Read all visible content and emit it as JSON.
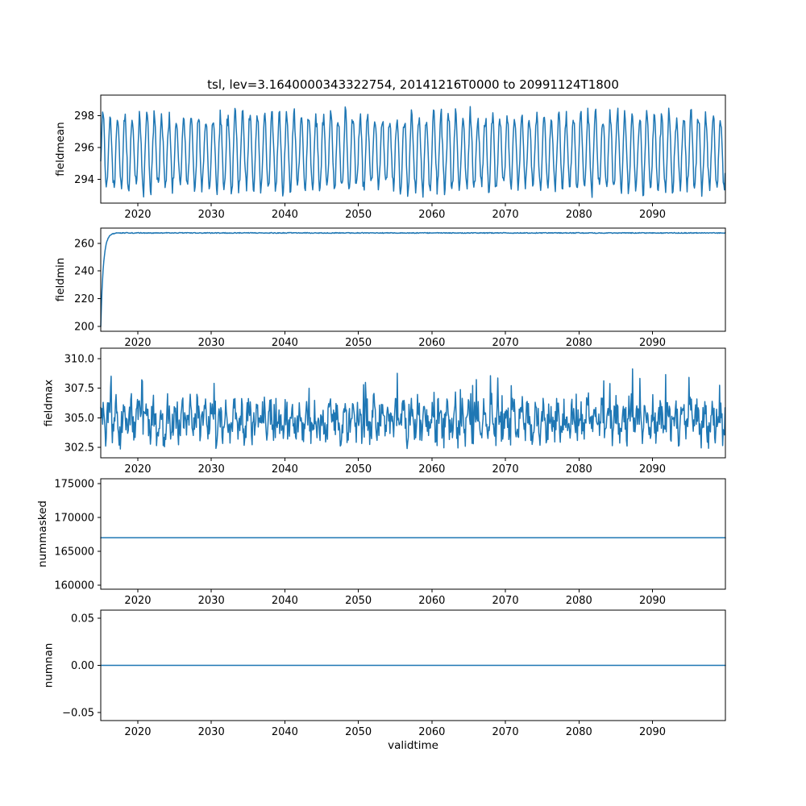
{
  "figure": {
    "title": "tsl, lev=3.1640000343322754, 20141216T0000 to 20991124T1800",
    "xlabel": "validtime",
    "background": "#ffffff",
    "line_color": "#1f77b4",
    "axis_color": "#000000",
    "text_color": "#000000"
  },
  "chart_data": [
    {
      "type": "line",
      "name": "fieldmean",
      "ylabel": "fieldmean",
      "xlim": [
        2014.96,
        2099.92
      ],
      "ylim": [
        292.5,
        299.3
      ],
      "yticks": [
        294,
        296,
        298
      ],
      "ytick_labels": [
        "294",
        "296",
        "298"
      ],
      "xticks": [
        2020,
        2030,
        2040,
        2050,
        2060,
        2070,
        2080,
        2090
      ],
      "xtick_labels": [
        "2020",
        "2030",
        "2040",
        "2050",
        "2060",
        "2070",
        "2080",
        "2090"
      ],
      "legend": null,
      "grid": false,
      "signal": {
        "kind": "seasonal",
        "base": 295.7,
        "amplitude": 2.25,
        "amp_jitter": 0.5,
        "noise": 0.5,
        "points_per_year": 12,
        "seed": 7,
        "clip": [
          292.6,
          299.0
        ]
      }
    },
    {
      "type": "line",
      "name": "fieldmin",
      "ylabel": "fieldmin",
      "xlim": [
        2014.96,
        2099.92
      ],
      "ylim": [
        196.6,
        270.9
      ],
      "yticks": [
        200,
        220,
        240,
        260
      ],
      "ytick_labels": [
        "200",
        "220",
        "240",
        "260"
      ],
      "xticks": [
        2020,
        2030,
        2040,
        2050,
        2060,
        2070,
        2080,
        2090
      ],
      "xtick_labels": [
        "2020",
        "2030",
        "2040",
        "2050",
        "2060",
        "2070",
        "2080",
        "2090"
      ],
      "legend": null,
      "grid": false,
      "signal": {
        "kind": "rise_then_flat",
        "start": 200,
        "flat": 267.4,
        "tau": 0.35,
        "noise": 0.6,
        "points_per_year": 12,
        "seed": 13,
        "clip": [
          200,
          268.2
        ]
      }
    },
    {
      "type": "line",
      "name": "fieldmax",
      "ylabel": "fieldmax",
      "xlim": [
        2014.96,
        2099.92
      ],
      "ylim": [
        301.6,
        310.9
      ],
      "yticks": [
        302.5,
        305.0,
        307.5,
        310.0
      ],
      "ytick_labels": [
        "302.5",
        "305.0",
        "307.5",
        "310.0"
      ],
      "xticks": [
        2020,
        2030,
        2040,
        2050,
        2060,
        2070,
        2080,
        2090
      ],
      "xtick_labels": [
        "2020",
        "2030",
        "2040",
        "2050",
        "2060",
        "2070",
        "2080",
        "2090"
      ],
      "legend": null,
      "grid": false,
      "signal": {
        "kind": "noisy",
        "base": 304.7,
        "amplitude": 1.0,
        "phase": 1.0,
        "noise": 2.8,
        "spike_prob": 0.07,
        "spike_height": 3.8,
        "points_per_year": 12,
        "seed": 99,
        "clip": [
          302.0,
          310.5
        ]
      }
    },
    {
      "type": "line",
      "name": "nummasked",
      "ylabel": "nummasked",
      "xlim": [
        2014.96,
        2099.92
      ],
      "ylim": [
        159400,
        175700
      ],
      "yticks": [
        160000,
        165000,
        170000,
        175000
      ],
      "ytick_labels": [
        "160000",
        "165000",
        "170000",
        "175000"
      ],
      "xticks": [
        2020,
        2030,
        2040,
        2050,
        2060,
        2070,
        2080,
        2090
      ],
      "xtick_labels": [
        "2020",
        "2030",
        "2040",
        "2050",
        "2060",
        "2070",
        "2080",
        "2090"
      ],
      "legend": null,
      "grid": false,
      "signal": {
        "kind": "constant",
        "value": 167000
      }
    },
    {
      "type": "line",
      "name": "numnan",
      "ylabel": "numnan",
      "xlim": [
        2014.96,
        2099.92
      ],
      "ylim": [
        -0.0583,
        0.0583
      ],
      "yticks": [
        -0.05,
        0.0,
        0.05
      ],
      "ytick_labels": [
        "−0.05",
        "0.00",
        "0.05"
      ],
      "xticks": [
        2020,
        2030,
        2040,
        2050,
        2060,
        2070,
        2080,
        2090
      ],
      "xtick_labels": [
        "2020",
        "2030",
        "2040",
        "2050",
        "2060",
        "2070",
        "2080",
        "2090"
      ],
      "legend": null,
      "grid": false,
      "signal": {
        "kind": "constant",
        "value": 0.0
      }
    }
  ]
}
